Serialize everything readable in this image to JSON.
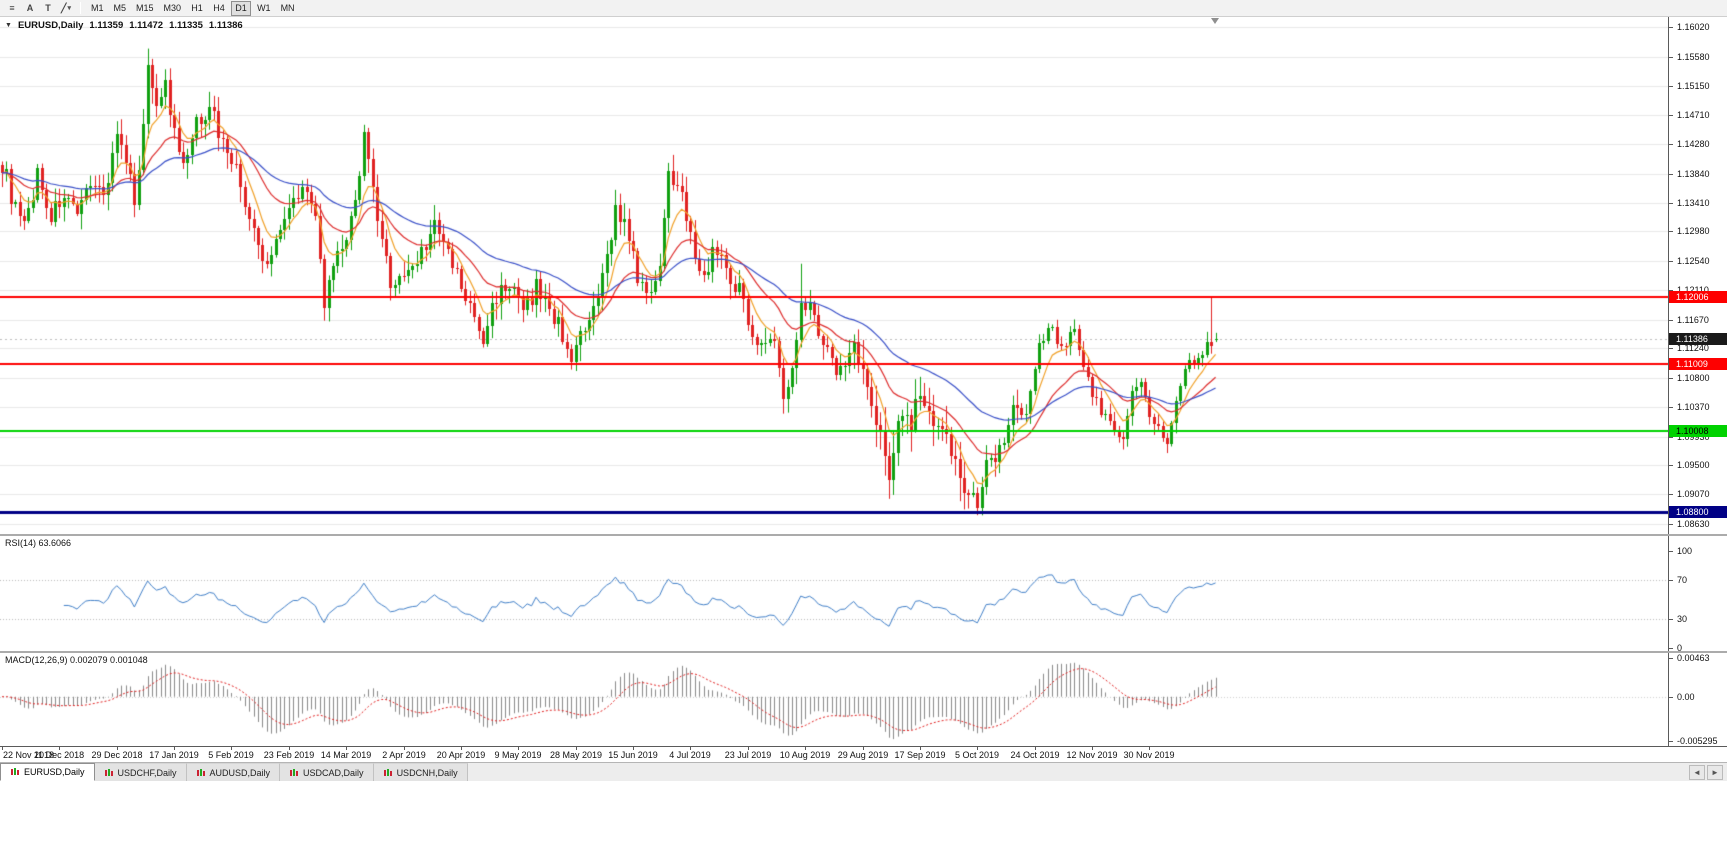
{
  "toolbar": {
    "icons": [
      {
        "name": "indicator-list-icon",
        "glyph": "≡"
      },
      {
        "name": "text-tool-icon",
        "glyph": "A"
      },
      {
        "name": "text-label-tool-icon",
        "glyph": "T"
      },
      {
        "name": "line-studies-icon",
        "glyph": "╱"
      },
      {
        "name": "dropdown-caret-icon",
        "glyph": "▾"
      }
    ],
    "timeframes": [
      {
        "label": "M1",
        "active": false
      },
      {
        "label": "M5",
        "active": false
      },
      {
        "label": "M15",
        "active": false
      },
      {
        "label": "M30",
        "active": false
      },
      {
        "label": "H1",
        "active": false
      },
      {
        "label": "H4",
        "active": false
      },
      {
        "label": "D1",
        "active": true
      },
      {
        "label": "W1",
        "active": false
      },
      {
        "label": "MN",
        "active": false
      }
    ]
  },
  "chart": {
    "toggle_glyph": "▼",
    "symbol": "EURUSD,Daily",
    "ohlc": {
      "open": "1.11359",
      "high": "1.11472",
      "low": "1.11335",
      "close": "1.11386"
    },
    "price_axis": [
      "1.16020",
      "1.15580",
      "1.15150",
      "1.14710",
      "1.14280",
      "1.13840",
      "1.13410",
      "1.12980",
      "1.12540",
      "1.12110",
      "1.11670",
      "1.11240",
      "1.10800",
      "1.10370",
      "1.09930",
      "1.09500",
      "1.09070",
      "1.08630"
    ],
    "price_min": 1.0845,
    "price_max": 1.1617,
    "hlines": [
      {
        "price": 1.12006,
        "label": "1.12006",
        "color": "#fe0000",
        "text_color": "#ffffff",
        "width": 2
      },
      {
        "price": 1.11009,
        "label": "1.11009",
        "color": "#fe0000",
        "text_color": "#ffffff",
        "width": 2
      },
      {
        "price": 1.10008,
        "label": "1.10008",
        "color": "#00d200",
        "text_color": "#000000",
        "width": 2
      },
      {
        "price": 1.088,
        "label": "1.08800",
        "color": "#000085",
        "text_color": "#ffffff",
        "width": 3
      }
    ],
    "bid_tag": {
      "price": 1.11386,
      "label": "1.11386",
      "color": "#1a1a1a",
      "text_color": "#ffffff"
    }
  },
  "rsi": {
    "label": "RSI(14) 63.6066",
    "period": 14,
    "line_color": "#3f7ec7",
    "levels": [
      70,
      30
    ],
    "axis": [
      {
        "text": "100",
        "v": 100
      },
      {
        "text": "70",
        "v": 70
      },
      {
        "text": "30",
        "v": 30
      },
      {
        "text": "0",
        "v": 0
      }
    ]
  },
  "macd": {
    "label": "MACD(12,26,9) 0.002079 0.001048",
    "hist_color": "#8a8a8a",
    "signal_color": "#e02020",
    "vmax": 0.00463,
    "vmin": -0.005295,
    "axis": [
      {
        "text": "0.00463",
        "v": 0.00463
      },
      {
        "text": "0.00",
        "v": 0
      },
      {
        "text": "-0.005295",
        "v": -0.005295
      }
    ]
  },
  "date_axis": [
    "22 Nov 2018",
    "11 Dec 2018",
    "29 Dec 2018",
    "17 Jan 2019",
    "5 Feb 2019",
    "23 Feb 2019",
    "14 Mar 2019",
    "2 Apr 2019",
    "20 Apr 2019",
    "9 May 2019",
    "28 May 2019",
    "15 Jun 2019",
    "4 Jul 2019",
    "23 Jul 2019",
    "10 Aug 2019",
    "29 Aug 2019",
    "17 Sep 2019",
    "5 Oct 2019",
    "24 Oct 2019",
    "12 Nov 2019",
    "30 Nov 2019"
  ],
  "tabs": {
    "items": [
      {
        "label": "EURUSD,Daily",
        "active": true
      },
      {
        "label": "USDCHF,Daily",
        "active": false
      },
      {
        "label": "AUDUSD,Daily",
        "active": false
      },
      {
        "label": "USDCAD,Daily",
        "active": false
      },
      {
        "label": "USDCNH,Daily",
        "active": false
      }
    ],
    "scroll_left": "◄",
    "scroll_right": "►"
  },
  "chart_data": {
    "type": "candlestick",
    "symbol": "EURUSD",
    "timeframe": "Daily",
    "candle_count": 276,
    "bars_per_date_label": 13,
    "up_color": "#10a010",
    "down_color": "#e02222",
    "ma_lines": [
      {
        "name": "fast-ma",
        "period": 7,
        "color": "#f0a028"
      },
      {
        "name": "mid-ma",
        "period": 20,
        "color": "#dd2c2c"
      },
      {
        "name": "slow-ma",
        "period": 45,
        "color": "#3a50c8"
      }
    ],
    "price_anchors": [
      [
        0,
        1.14
      ],
      [
        3,
        1.133
      ],
      [
        5,
        1.13
      ],
      [
        8,
        1.1385
      ],
      [
        11,
        1.132
      ],
      [
        14,
        1.1355
      ],
      [
        17,
        1.131
      ],
      [
        20,
        1.138
      ],
      [
        23,
        1.135
      ],
      [
        26,
        1.1445
      ],
      [
        28,
        1.139
      ],
      [
        30,
        1.135
      ],
      [
        32,
        1.145
      ],
      [
        33,
        1.1545
      ],
      [
        35,
        1.1495
      ],
      [
        37,
        1.1515
      ],
      [
        39,
        1.144
      ],
      [
        41,
        1.139
      ],
      [
        44,
        1.1455
      ],
      [
        47,
        1.149
      ],
      [
        49,
        1.1445
      ],
      [
        52,
        1.141
      ],
      [
        55,
        1.134
      ],
      [
        58,
        1.127
      ],
      [
        60,
        1.1245
      ],
      [
        63,
        1.131
      ],
      [
        66,
        1.1345
      ],
      [
        68,
        1.1375
      ],
      [
        71,
        1.131
      ],
      [
        73,
        1.1195
      ],
      [
        76,
        1.1255
      ],
      [
        79,
        1.131
      ],
      [
        82,
        1.1435
      ],
      [
        84,
        1.1355
      ],
      [
        86,
        1.1275
      ],
      [
        88,
        1.1225
      ],
      [
        92,
        1.1235
      ],
      [
        95,
        1.127
      ],
      [
        98,
        1.1305
      ],
      [
        101,
        1.1265
      ],
      [
        104,
        1.1215
      ],
      [
        107,
        1.1165
      ],
      [
        109,
        1.1135
      ],
      [
        112,
        1.1205
      ],
      [
        115,
        1.122
      ],
      [
        118,
        1.1175
      ],
      [
        121,
        1.1215
      ],
      [
        124,
        1.1185
      ],
      [
        127,
        1.1145
      ],
      [
        129,
        1.1115
      ],
      [
        132,
        1.1145
      ],
      [
        134,
        1.1175
      ],
      [
        136,
        1.1225
      ],
      [
        139,
        1.1335
      ],
      [
        141,
        1.1305
      ],
      [
        143,
        1.1255
      ],
      [
        146,
        1.1195
      ],
      [
        149,
        1.1255
      ],
      [
        151,
        1.138
      ],
      [
        154,
        1.137
      ],
      [
        156,
        1.1285
      ],
      [
        159,
        1.1225
      ],
      [
        161,
        1.1275
      ],
      [
        164,
        1.1245
      ],
      [
        167,
        1.121
      ],
      [
        170,
        1.115
      ],
      [
        173,
        1.1125
      ],
      [
        175,
        1.114
      ],
      [
        177,
        1.104
      ],
      [
        179,
        1.1095
      ],
      [
        181,
        1.1205
      ],
      [
        184,
        1.1175
      ],
      [
        187,
        1.1115
      ],
      [
        190,
        1.109
      ],
      [
        193,
        1.1135
      ],
      [
        195,
        1.109
      ],
      [
        197,
        1.1035
      ],
      [
        199,
        1.099
      ],
      [
        201,
        1.0935
      ],
      [
        203,
        1.103
      ],
      [
        206,
        1.1015
      ],
      [
        208,
        1.106
      ],
      [
        211,
        1.1
      ],
      [
        214,
        1.099
      ],
      [
        217,
        1.0935
      ],
      [
        220,
        1.09
      ],
      [
        221,
        1.0885
      ],
      [
        223,
        1.096
      ],
      [
        226,
        1.0975
      ],
      [
        229,
        1.104
      ],
      [
        232,
        1.103
      ],
      [
        235,
        1.1125
      ],
      [
        237,
        1.116
      ],
      [
        240,
        1.113
      ],
      [
        243,
        1.115
      ],
      [
        246,
        1.1075
      ],
      [
        249,
        1.103
      ],
      [
        252,
        1.1005
      ],
      [
        254,
        1.099
      ],
      [
        256,
        1.1055
      ],
      [
        258,
        1.1075
      ],
      [
        260,
        1.102
      ],
      [
        262,
        1.1
      ],
      [
        264,
        1.0985
      ],
      [
        266,
        1.104
      ],
      [
        268,
        1.109
      ],
      [
        270,
        1.111
      ],
      [
        272,
        1.111
      ],
      [
        273,
        1.1135
      ],
      [
        274,
        1.1125
      ],
      [
        275,
        1.11386
      ]
    ],
    "spike_highs": [
      [
        33,
        1.157
      ],
      [
        82,
        1.1448
      ],
      [
        151,
        1.14
      ],
      [
        181,
        1.125
      ],
      [
        274,
        1.12
      ]
    ],
    "spike_lows": [
      [
        73,
        1.1176
      ],
      [
        129,
        1.1107
      ],
      [
        177,
        1.1027
      ],
      [
        201,
        1.0926
      ],
      [
        221,
        1.0876
      ],
      [
        264,
        1.0981
      ]
    ]
  }
}
